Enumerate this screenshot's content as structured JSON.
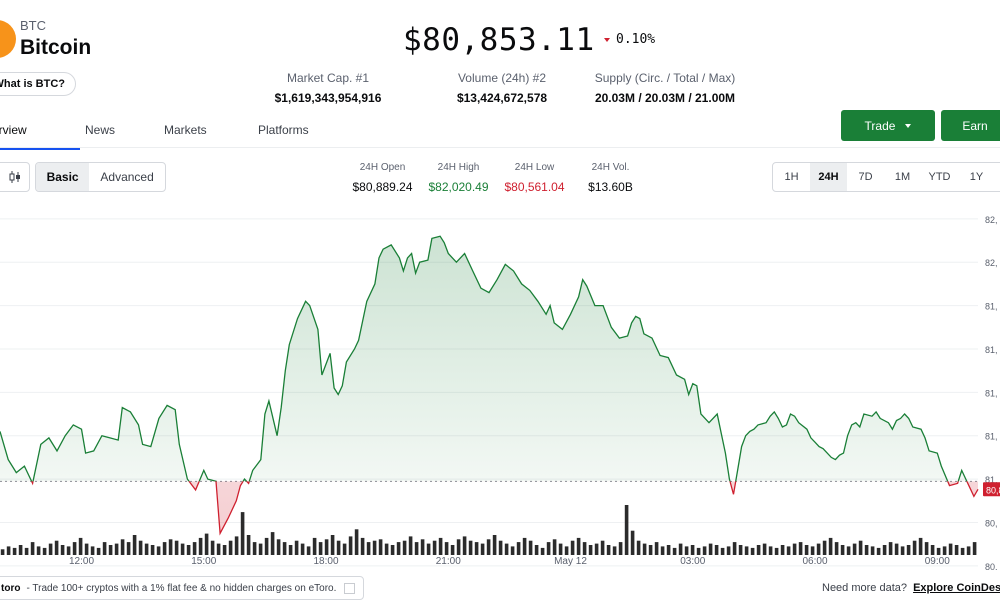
{
  "coin": {
    "symbol": "BTC",
    "name": "Bitcoin",
    "what_is_label": "What is BTC?",
    "logo_color": "#f7931a"
  },
  "price": {
    "value": "$80,853.11",
    "change": "0.10%",
    "direction": "down"
  },
  "stats": [
    {
      "label": "Market Cap. #1",
      "value": "$1,619,343,954,916"
    },
    {
      "label": "Volume (24h) #2",
      "value": "$13,424,672,578"
    },
    {
      "label": "Supply (Circ. / Total / Max)",
      "value": "20.03M / 20.03M / 21.00M"
    }
  ],
  "tabs": [
    {
      "label": "erview",
      "active": true
    },
    {
      "label": "News",
      "active": false
    },
    {
      "label": "Markets",
      "active": false
    },
    {
      "label": "Platforms",
      "active": false
    }
  ],
  "buttons": {
    "trade": "Trade",
    "earn": "Earn"
  },
  "view_toggle": {
    "basic": "Basic",
    "advanced": "Advanced",
    "selected": "Basic"
  },
  "day_stats": [
    {
      "label": "24H Open",
      "value": "$80,889.24",
      "tone": "neutral"
    },
    {
      "label": "24H High",
      "value": "$82,020.49",
      "tone": "green"
    },
    {
      "label": "24H Low",
      "value": "$80,561.04",
      "tone": "red"
    },
    {
      "label": "24H Vol.",
      "value": "$13.60B",
      "tone": "neutral"
    }
  ],
  "ranges": [
    {
      "label": "1H",
      "active": false
    },
    {
      "label": "24H",
      "active": true
    },
    {
      "label": "7D",
      "active": false
    },
    {
      "label": "1M",
      "active": false
    },
    {
      "label": "YTD",
      "active": false
    },
    {
      "label": "1Y",
      "active": false
    }
  ],
  "colors": {
    "up": "#1a7f37",
    "down": "#cf202f",
    "accent": "#1652f0",
    "volume": "#2b2b2b"
  },
  "chart_data": {
    "type": "area",
    "baseline": 80889.24,
    "current_label": "80,8",
    "xlim": [
      0,
      24
    ],
    "ylim": [
      80550,
      82150
    ],
    "xticks": [
      {
        "x": 2.0,
        "label": "12:00"
      },
      {
        "x": 5.0,
        "label": "15:00"
      },
      {
        "x": 8.0,
        "label": "18:00"
      },
      {
        "x": 11.0,
        "label": "21:00"
      },
      {
        "x": 14.0,
        "label": "May 12"
      },
      {
        "x": 17.0,
        "label": "03:00"
      },
      {
        "x": 20.0,
        "label": "06:00"
      },
      {
        "x": 23.0,
        "label": "09:00"
      }
    ],
    "yticks": [
      {
        "v": 82100,
        "label": "82,"
      },
      {
        "v": 81900,
        "label": "82,"
      },
      {
        "v": 81700,
        "label": "81,"
      },
      {
        "v": 81500,
        "label": "81,"
      },
      {
        "v": 81300,
        "label": "81,"
      },
      {
        "v": 81100,
        "label": "81,"
      },
      {
        "v": 80900,
        "label": "81,"
      },
      {
        "v": 80700,
        "label": "80,"
      },
      {
        "v": 80500,
        "label": "80,"
      }
    ],
    "series": [
      {
        "values": [
          [
            0.0,
            81120
          ],
          [
            0.2,
            80990
          ],
          [
            0.4,
            80930
          ],
          [
            0.6,
            80960
          ],
          [
            0.8,
            80880
          ],
          [
            1.0,
            81060
          ],
          [
            1.2,
            81090
          ],
          [
            1.4,
            81030
          ],
          [
            1.6,
            81100
          ],
          [
            1.8,
            81150
          ],
          [
            2.0,
            81130
          ],
          [
            2.1,
            81020
          ],
          [
            2.3,
            81030
          ],
          [
            2.5,
            81100
          ],
          [
            2.7,
            81090
          ],
          [
            2.9,
            81080
          ],
          [
            3.0,
            81230
          ],
          [
            3.2,
            81210
          ],
          [
            3.4,
            81150
          ],
          [
            3.5,
            81060
          ],
          [
            3.7,
            81050
          ],
          [
            3.9,
            81180
          ],
          [
            4.1,
            81240
          ],
          [
            4.3,
            81220
          ],
          [
            4.4,
            81060
          ],
          [
            4.6,
            80900
          ],
          [
            4.8,
            80850
          ],
          [
            5.0,
            80940
          ],
          [
            5.1,
            80900
          ],
          [
            5.3,
            80890
          ],
          [
            5.4,
            80650
          ],
          [
            5.6,
            80720
          ],
          [
            5.8,
            80800
          ],
          [
            5.9,
            80870
          ],
          [
            6.0,
            80900
          ],
          [
            6.1,
            80880
          ],
          [
            6.2,
            80940
          ],
          [
            6.4,
            80990
          ],
          [
            6.5,
            81200
          ],
          [
            6.6,
            81260
          ],
          [
            6.8,
            81100
          ],
          [
            6.9,
            81230
          ],
          [
            7.0,
            81400
          ],
          [
            7.1,
            81520
          ],
          [
            7.3,
            81640
          ],
          [
            7.5,
            81720
          ],
          [
            7.6,
            81700
          ],
          [
            7.8,
            81590
          ],
          [
            7.9,
            81380
          ],
          [
            8.0,
            81430
          ],
          [
            8.1,
            81480
          ],
          [
            8.2,
            81320
          ],
          [
            8.3,
            81290
          ],
          [
            8.4,
            81330
          ],
          [
            8.5,
            81440
          ],
          [
            8.7,
            81500
          ],
          [
            8.8,
            81540
          ],
          [
            8.9,
            81630
          ],
          [
            9.0,
            81720
          ],
          [
            9.2,
            81800
          ],
          [
            9.3,
            81920
          ],
          [
            9.4,
            81960
          ],
          [
            9.6,
            81980
          ],
          [
            9.8,
            81920
          ],
          [
            9.9,
            81860
          ],
          [
            10.0,
            81920
          ],
          [
            10.1,
            81940
          ],
          [
            10.2,
            81850
          ],
          [
            10.3,
            81900
          ],
          [
            10.5,
            81910
          ],
          [
            10.6,
            82010
          ],
          [
            10.8,
            82020
          ],
          [
            10.9,
            81990
          ],
          [
            11.0,
            81940
          ],
          [
            11.2,
            81900
          ],
          [
            11.4,
            81940
          ],
          [
            11.6,
            81860
          ],
          [
            11.8,
            81780
          ],
          [
            12.0,
            81760
          ],
          [
            12.2,
            81820
          ],
          [
            12.4,
            81890
          ],
          [
            12.6,
            81860
          ],
          [
            12.8,
            81800
          ],
          [
            13.0,
            81770
          ],
          [
            13.2,
            81720
          ],
          [
            13.4,
            81660
          ],
          [
            13.5,
            81700
          ],
          [
            13.6,
            81620
          ],
          [
            13.8,
            81590
          ],
          [
            14.0,
            81660
          ],
          [
            14.2,
            81740
          ],
          [
            14.3,
            81820
          ],
          [
            14.4,
            81790
          ],
          [
            14.6,
            81700
          ],
          [
            14.8,
            81700
          ],
          [
            15.0,
            81600
          ],
          [
            15.2,
            81550
          ],
          [
            15.4,
            81560
          ],
          [
            15.5,
            81620
          ],
          [
            15.6,
            81650
          ],
          [
            15.7,
            81640
          ],
          [
            15.8,
            81570
          ],
          [
            16.0,
            81550
          ],
          [
            16.2,
            81470
          ],
          [
            16.4,
            81460
          ],
          [
            16.6,
            81380
          ],
          [
            16.8,
            81360
          ],
          [
            16.9,
            81290
          ],
          [
            17.0,
            81340
          ],
          [
            17.1,
            81330
          ],
          [
            17.2,
            81200
          ],
          [
            17.4,
            81160
          ],
          [
            17.6,
            81200
          ],
          [
            17.7,
            81110
          ],
          [
            17.8,
            81020
          ],
          [
            17.9,
            80900
          ],
          [
            18.0,
            80830
          ],
          [
            18.1,
            80940
          ],
          [
            18.2,
            81050
          ],
          [
            18.3,
            81100
          ],
          [
            18.4,
            81120
          ],
          [
            18.5,
            81130
          ],
          [
            18.6,
            81150
          ],
          [
            18.8,
            81160
          ],
          [
            18.9,
            81190
          ],
          [
            19.0,
            81210
          ],
          [
            19.1,
            81180
          ],
          [
            19.2,
            81140
          ],
          [
            19.3,
            81150
          ],
          [
            19.4,
            81200
          ],
          [
            19.5,
            81190
          ],
          [
            19.6,
            81160
          ],
          [
            19.8,
            81130
          ],
          [
            19.9,
            81090
          ],
          [
            20.0,
            81070
          ],
          [
            20.1,
            81050
          ],
          [
            20.2,
            81040
          ],
          [
            20.4,
            81000
          ],
          [
            20.5,
            80990
          ],
          [
            20.6,
            81010
          ],
          [
            20.7,
            81020
          ],
          [
            20.8,
            81100
          ],
          [
            20.9,
            81150
          ],
          [
            21.0,
            81160
          ],
          [
            21.1,
            81140
          ],
          [
            21.2,
            81200
          ],
          [
            21.4,
            81190
          ],
          [
            21.5,
            81210
          ],
          [
            21.6,
            81180
          ],
          [
            21.8,
            81160
          ],
          [
            21.9,
            81130
          ],
          [
            22.0,
            81170
          ],
          [
            22.1,
            81180
          ],
          [
            22.2,
            81200
          ],
          [
            22.3,
            81180
          ],
          [
            22.4,
            81140
          ],
          [
            22.6,
            81130
          ],
          [
            22.7,
            81090
          ],
          [
            22.8,
            81030
          ],
          [
            23.0,
            81020
          ],
          [
            23.1,
            80960
          ],
          [
            23.3,
            80870
          ],
          [
            23.5,
            80880
          ],
          [
            23.6,
            80940
          ],
          [
            23.7,
            80900
          ],
          [
            23.8,
            80860
          ],
          [
            23.9,
            80820
          ],
          [
            24.0,
            80853
          ]
        ]
      }
    ],
    "volume": [
      4,
      6,
      5,
      7,
      5,
      9,
      6,
      5,
      8,
      10,
      7,
      6,
      9,
      12,
      8,
      6,
      5,
      9,
      7,
      8,
      11,
      9,
      14,
      10,
      8,
      7,
      6,
      9,
      11,
      10,
      8,
      7,
      9,
      12,
      15,
      10,
      8,
      7,
      10,
      13,
      30,
      14,
      9,
      8,
      12,
      16,
      11,
      9,
      7,
      10,
      8,
      6,
      12,
      9,
      11,
      14,
      10,
      8,
      13,
      18,
      12,
      9,
      10,
      11,
      8,
      7,
      9,
      10,
      13,
      9,
      11,
      8,
      10,
      12,
      9,
      7,
      11,
      13,
      10,
      9,
      8,
      11,
      14,
      10,
      8,
      6,
      9,
      12,
      10,
      7,
      5,
      9,
      11,
      8,
      6,
      10,
      12,
      9,
      7,
      8,
      10,
      7,
      6,
      9,
      35,
      17,
      10,
      8,
      7,
      9,
      6,
      7,
      5,
      8,
      6,
      7,
      5,
      6,
      8,
      7,
      5,
      6,
      9,
      7,
      6,
      5,
      7,
      8,
      6,
      5,
      7,
      6,
      8,
      9,
      7,
      6,
      8,
      10,
      12,
      9,
      7,
      6,
      8,
      10,
      7,
      6,
      5,
      7,
      9,
      8,
      6,
      7,
      10,
      12,
      9,
      7,
      5,
      6,
      8,
      7,
      5,
      6,
      9
    ]
  },
  "footer": {
    "brand": "toro",
    "text": "- Trade 100+ cryptos with a 1% flat fee & no hidden charges on eToro.",
    "need_more": "Need more data?",
    "explore": "Explore CoinDesk"
  }
}
